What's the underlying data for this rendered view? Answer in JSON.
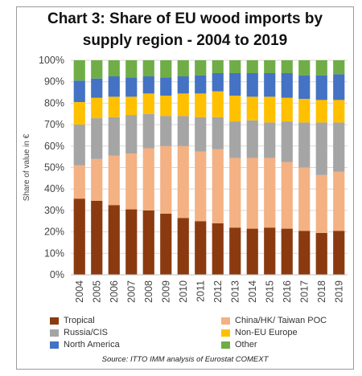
{
  "chart_data": {
    "type": "bar",
    "stacked": true,
    "title_lines": [
      "Chart 3: Share of EU wood imports by",
      "supply region - 2004 to 2019"
    ],
    "ylabel": "Share of value in €",
    "xlabel": "",
    "ylim": [
      0,
      100
    ],
    "y_ticks": [
      "0%",
      "10%",
      "20%",
      "30%",
      "40%",
      "50%",
      "60%",
      "70%",
      "80%",
      "90%",
      "100%"
    ],
    "grid": true,
    "legend_position": "bottom",
    "categories": [
      "2004",
      "2005",
      "2006",
      "2007",
      "2008",
      "2009",
      "2010",
      "2011",
      "2012",
      "2013",
      "2014",
      "2015",
      "2016",
      "2017",
      "2018",
      "2019"
    ],
    "series": [
      {
        "name": "Tropical",
        "color": "#8B3A0F",
        "values": [
          35.5,
          34.5,
          32.5,
          30.5,
          30,
          28.5,
          26.5,
          25,
          24,
          22,
          21.5,
          22,
          21.5,
          20.5,
          19.5,
          20.5
        ]
      },
      {
        "name": "China/HK/ Taiwan POC",
        "color": "#F4B183",
        "values": [
          15.5,
          19.5,
          23,
          26,
          29,
          31.5,
          33.5,
          32.5,
          34.5,
          32.5,
          33,
          32.5,
          31,
          29.5,
          27,
          27.5
        ]
      },
      {
        "name": "Russia/CIS",
        "color": "#A5A5A5",
        "values": [
          19,
          19,
          18,
          18,
          16,
          14,
          14,
          16,
          15,
          17,
          17.5,
          16.5,
          19,
          21,
          24.5,
          23
        ]
      },
      {
        "name": "Non-EU Europe",
        "color": "#FFC000",
        "values": [
          10.5,
          9.5,
          9.5,
          8.5,
          9.5,
          9.5,
          10.5,
          11,
          12,
          12,
          11,
          12,
          11,
          11,
          10.5,
          10.5
        ]
      },
      {
        "name": "North America",
        "color": "#4472C4",
        "values": [
          10,
          9,
          9.5,
          9,
          8,
          8.5,
          8,
          8.5,
          8.5,
          10.5,
          11,
          11,
          11.5,
          11,
          11.5,
          12
        ]
      },
      {
        "name": "Other",
        "color": "#70AD47",
        "values": [
          9.5,
          8.5,
          7.5,
          8,
          7.5,
          8,
          7.5,
          7,
          6,
          6,
          6,
          6,
          6,
          7,
          7,
          6.5
        ]
      }
    ],
    "source": "Source: ITTO IMM analysis of Eurostat COMEXT"
  }
}
